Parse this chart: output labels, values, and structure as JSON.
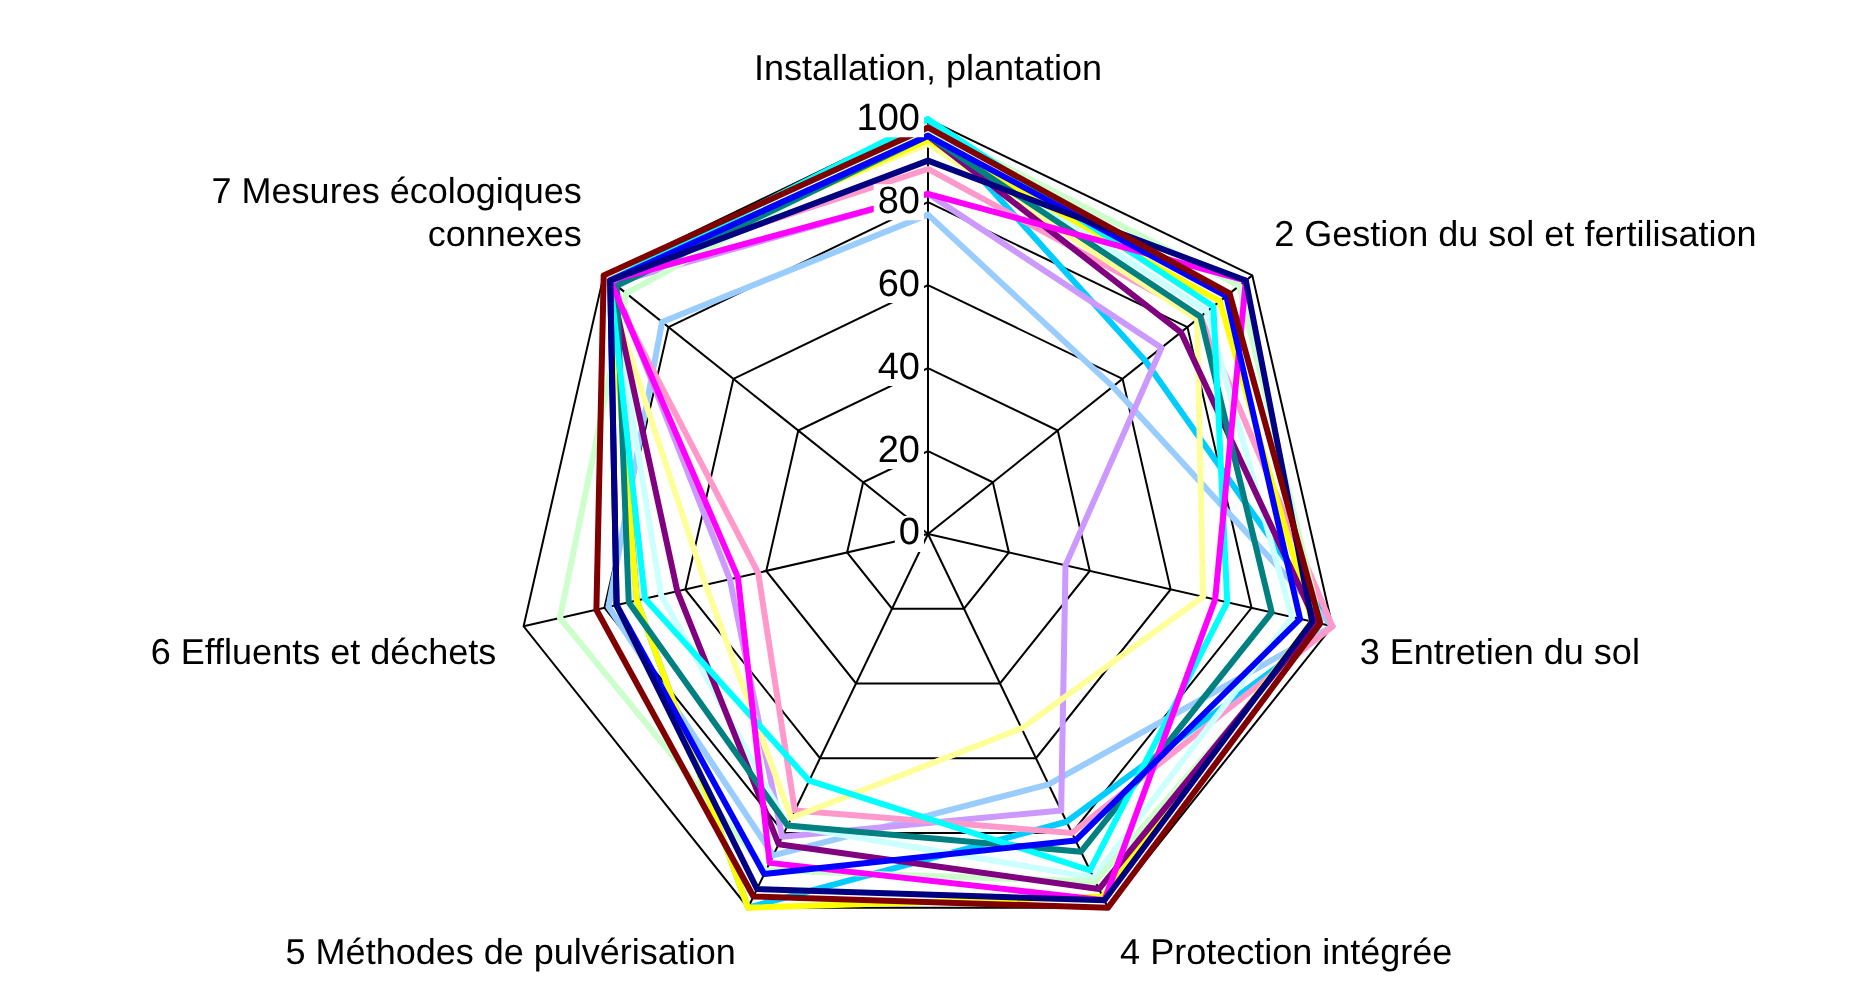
{
  "chart_data": {
    "type": "radar",
    "categories": [
      "Installation, plantation",
      "2 Gestion du sol et fertilisation",
      "3 Entretien du sol",
      "4 Protection intégrée",
      "5 Méthodes de pulvérisation",
      "6 Effluents et déchets",
      "7 Mesures écologiques connexes"
    ],
    "ylim": [
      0,
      100
    ],
    "yticks": [
      0,
      20,
      40,
      60,
      80,
      100
    ],
    "grid": true,
    "legend": false,
    "marker": "none",
    "series": [
      {
        "color": "#800000",
        "values": [
          98,
          93,
          97,
          100,
          97,
          82,
          100
        ]
      },
      {
        "color": "#000080",
        "values": [
          90,
          98,
          95,
          98,
          95,
          77,
          98
        ]
      },
      {
        "color": "#0000ff",
        "values": [
          96,
          92,
          92,
          82,
          91,
          77,
          98
        ]
      },
      {
        "color": "#ff00ff",
        "values": [
          82,
          98,
          71,
          98,
          88,
          47,
          98
        ]
      },
      {
        "color": "#00ffff",
        "values": [
          100,
          88,
          74,
          90,
          66,
          70,
          98
        ]
      },
      {
        "color": "#008080",
        "values": [
          96,
          84,
          85,
          85,
          78,
          74,
          96
        ]
      },
      {
        "color": "#800080",
        "values": [
          96,
          78,
          96,
          95,
          83,
          62,
          98
        ]
      },
      {
        "color": "#ffff00",
        "values": [
          95,
          90,
          95,
          97,
          100,
          72,
          98
        ]
      },
      {
        "color": "#ccffcc",
        "values": [
          98,
          96,
          97,
          93,
          90,
          91,
          93
        ]
      },
      {
        "color": "#ffff99",
        "values": [
          94,
          83,
          68,
          52,
          76,
          55,
          100
        ]
      },
      {
        "color": "#ccffff",
        "values": [
          97,
          86,
          90,
          92,
          78,
          66,
          98
        ]
      },
      {
        "color": "#ff99cc",
        "values": [
          88,
          84,
          100,
          80,
          74,
          42,
          100
        ]
      },
      {
        "color": "#cc99ff",
        "values": [
          82,
          72,
          34,
          74,
          81,
          49,
          97
        ]
      },
      {
        "color": "#99ccff",
        "values": [
          77,
          57,
          100,
          67,
          86,
          79,
          82
        ]
      },
      {
        "color": "#00ccff",
        "values": [
          100,
          67,
          100,
          77,
          100,
          72,
          97
        ]
      }
    ]
  }
}
